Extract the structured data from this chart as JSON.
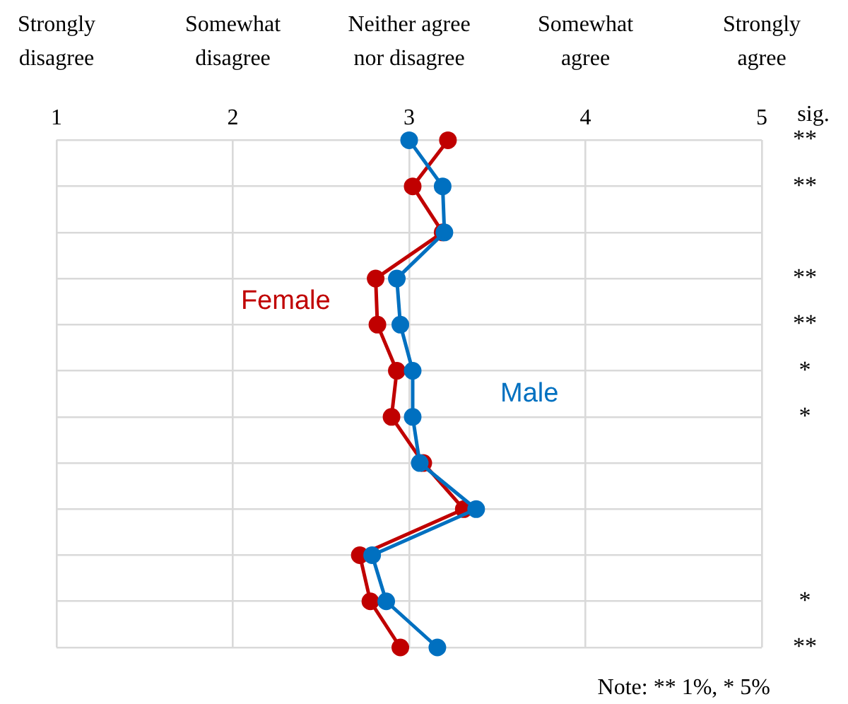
{
  "chart_data": {
    "type": "line",
    "orientation": "horizontal",
    "categories": [
      "**",
      "**",
      null,
      "**",
      "**",
      "*",
      "*",
      null,
      null,
      null,
      "*",
      "**"
    ],
    "ylabel": "sig.",
    "series": [
      {
        "name": "Female",
        "color": "#c00000",
        "values": [
          3.22,
          3.02,
          3.19,
          2.81,
          2.82,
          2.93,
          2.9,
          3.08,
          3.31,
          2.72,
          2.78,
          2.95
        ]
      },
      {
        "name": "Male",
        "color": "#0070c0",
        "values": [
          3.0,
          3.19,
          3.2,
          2.93,
          2.95,
          3.02,
          3.02,
          3.06,
          3.38,
          2.79,
          2.87,
          3.16
        ]
      }
    ],
    "xlim": [
      1,
      5
    ],
    "xticks": [
      1,
      2,
      3,
      4,
      5
    ],
    "grid": true,
    "legend": false,
    "marker": "circle",
    "line_style": "solid",
    "annotations": [
      "Strongly disagree",
      "Somewhat disagree",
      "Neither agree nor disagree",
      "Somewhat agree",
      "Strongly agree",
      "Note: ** 1%, * 5%"
    ]
  }
}
